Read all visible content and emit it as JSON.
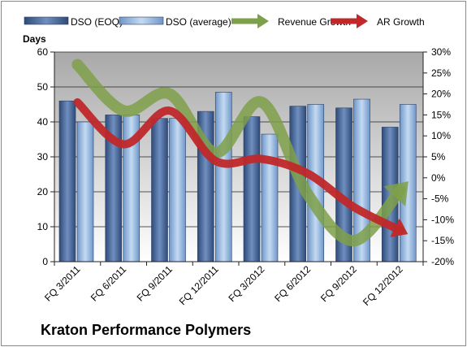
{
  "chart_data": {
    "type": "bar",
    "subtitle": "Kraton Performance Polymers",
    "y_left": {
      "label": "Days",
      "lim": [
        0,
        60
      ],
      "ticks": [
        0,
        10,
        20,
        30,
        40,
        50,
        60
      ]
    },
    "y_right": {
      "lim": [
        -0.2,
        0.3
      ],
      "ticks": [
        -0.2,
        -0.15,
        -0.1,
        -0.05,
        0,
        0.05,
        0.1,
        0.15,
        0.2,
        0.25,
        0.3
      ],
      "tick_labels": [
        "-20%",
        "-15%",
        "-10%",
        "-5%",
        "0%",
        "5%",
        "10%",
        "15%",
        "20%",
        "25%",
        "30%"
      ]
    },
    "categories": [
      "FQ 3/2011",
      "FQ 6/2011",
      "FQ 9/2011",
      "FQ 12/2011",
      "FQ 3/2012",
      "FQ 6/2012",
      "FQ 9/2012",
      "FQ 12/2012"
    ],
    "series": [
      {
        "name": "DSO (EOQ)",
        "kind": "bar",
        "axis": "left",
        "color": "#4a6a9c",
        "values": [
          46,
          42,
          41,
          43,
          41.5,
          44.5,
          44,
          38.5
        ]
      },
      {
        "name": "DSO (average)",
        "kind": "bar",
        "axis": "left",
        "color": "#8fb3dc",
        "values": [
          40,
          42,
          41,
          48.5,
          36.5,
          45,
          46.5,
          45
        ]
      },
      {
        "name": "Revenue Growth",
        "kind": "line",
        "axis": "right",
        "color": "#7fa04a",
        "values": [
          0.27,
          0.16,
          0.2,
          0.06,
          0.18,
          -0.04,
          -0.15,
          -0.03
        ]
      },
      {
        "name": "AR Growth",
        "kind": "line",
        "axis": "right",
        "color": "#c0282a",
        "values": [
          0.18,
          0.08,
          0.16,
          0.04,
          0.045,
          0.01,
          -0.07,
          -0.125
        ]
      }
    ],
    "grid": true,
    "legend": "top"
  }
}
